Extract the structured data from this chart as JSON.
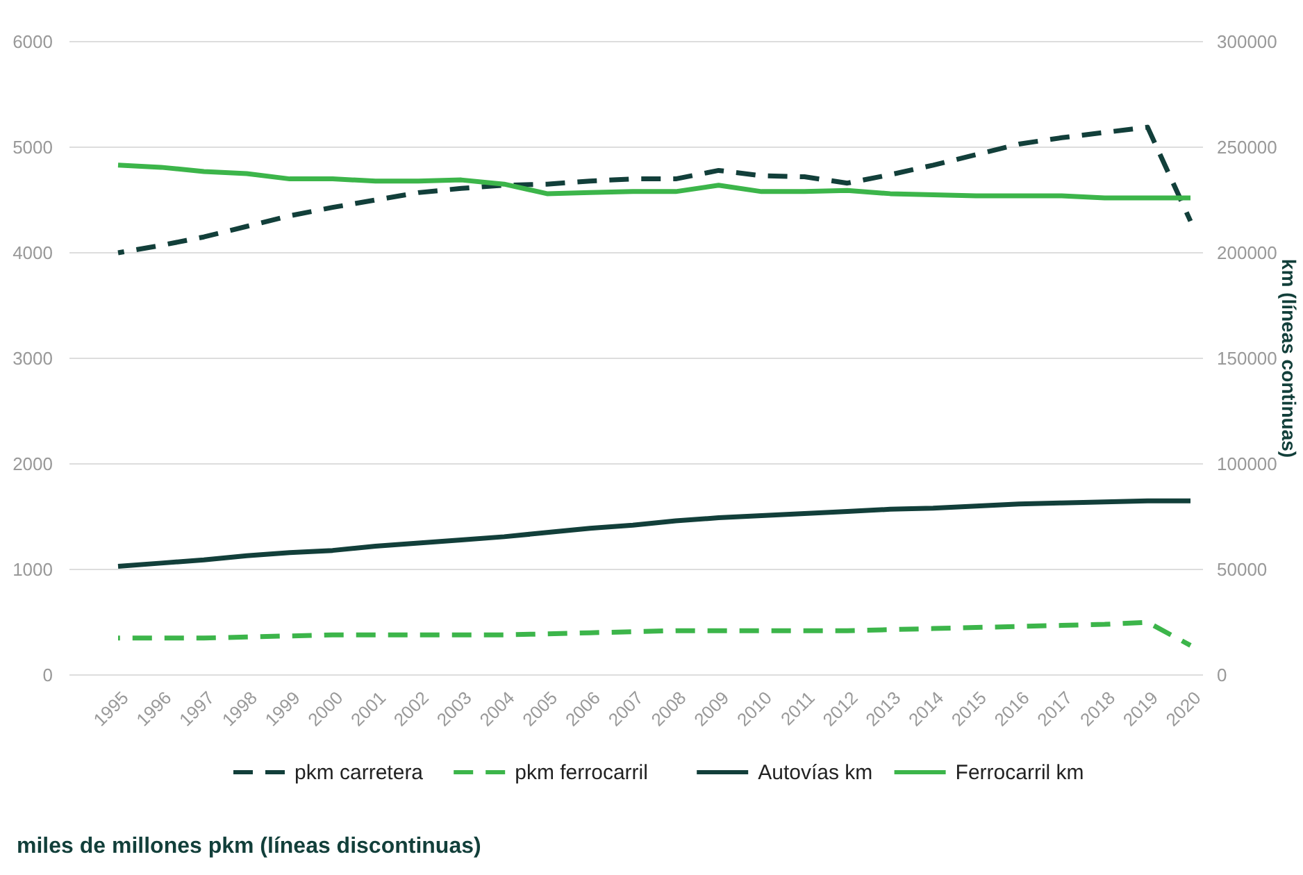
{
  "chart_data": {
    "type": "line",
    "categories": [
      "1995",
      "1996",
      "1997",
      "1998",
      "1999",
      "2000",
      "2001",
      "2002",
      "2003",
      "2004",
      "2005",
      "2006",
      "2007",
      "2008",
      "2009",
      "2010",
      "2011",
      "2012",
      "2013",
      "2014",
      "2015",
      "2016",
      "2017",
      "2018",
      "2019",
      "2020"
    ],
    "series": [
      {
        "name": "pkm carretera",
        "color": "#123f3a",
        "line_style": "dashed",
        "values": [
          4000,
          4070,
          4150,
          4250,
          4350,
          4430,
          4500,
          4570,
          4610,
          4640,
          4650,
          4680,
          4700,
          4700,
          4780,
          4730,
          4720,
          4660,
          4740,
          4830,
          4930,
          5030,
          5090,
          5140,
          5190,
          4300
        ]
      },
      {
        "name": "pkm ferrocarril",
        "color": "#3cb54a",
        "line_style": "dashed",
        "values": [
          350,
          350,
          350,
          360,
          370,
          380,
          380,
          380,
          380,
          380,
          390,
          400,
          410,
          420,
          420,
          420,
          420,
          420,
          430,
          440,
          450,
          460,
          470,
          480,
          500,
          280
        ]
      },
      {
        "name": "Autovías km",
        "color": "#123f3a",
        "line_style": "solid",
        "axis": "y2",
        "values": [
          51500,
          53000,
          54500,
          56500,
          58000,
          59000,
          61000,
          62500,
          64000,
          65500,
          67500,
          69500,
          71000,
          73000,
          74500,
          75500,
          76500,
          77500,
          78500,
          79000,
          80000,
          81000,
          81500,
          82000,
          82500,
          82500
        ]
      },
      {
        "name": "Ferrocarril km",
        "color": "#3cb54a",
        "line_style": "solid",
        "axis": "y2",
        "values": [
          241500,
          240500,
          238500,
          237500,
          235000,
          235000,
          234000,
          234000,
          234500,
          232500,
          228000,
          228500,
          229000,
          229000,
          232000,
          229000,
          229000,
          229500,
          228000,
          227500,
          227000,
          227000,
          227000,
          226000,
          226000,
          226000
        ]
      }
    ],
    "ylim": [
      0,
      6000
    ],
    "yticks": [
      0,
      1000,
      2000,
      3000,
      4000,
      5000,
      6000
    ],
    "y2lim": [
      0,
      300000
    ],
    "y2ticks": [
      0,
      50000,
      100000,
      150000,
      200000,
      250000,
      300000
    ],
    "ylabel": "miles de millones pkm (líneas discontinuas)",
    "y2label": "km (líneas continuas)",
    "grid": "y",
    "legend": "bottom",
    "marker": "none"
  }
}
